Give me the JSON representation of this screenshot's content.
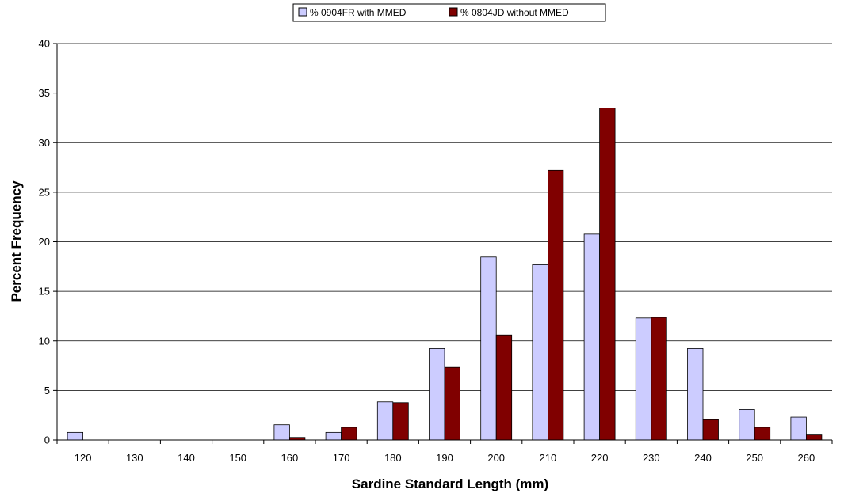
{
  "chart_data": {
    "type": "bar",
    "xlabel": "Sardine Standard Length (mm)",
    "ylabel": "Percent Frequency",
    "ylim": [
      0,
      40
    ],
    "yticks": [
      0,
      5,
      10,
      15,
      20,
      25,
      30,
      35,
      40
    ],
    "grid": true,
    "legend_position": "top-center",
    "categories": [
      "120",
      "130",
      "140",
      "150",
      "160",
      "170",
      "180",
      "190",
      "200",
      "210",
      "220",
      "230",
      "240",
      "250",
      "260"
    ],
    "series": [
      {
        "name": "% 0904FR with MMED",
        "color": "#ccccff",
        "values": [
          0.77,
          0,
          0,
          0,
          1.54,
          0.77,
          3.85,
          9.23,
          18.46,
          17.69,
          20.77,
          12.31,
          9.23,
          3.08,
          2.31
        ]
      },
      {
        "name": "% 0804JD without MMED",
        "color": "#800000",
        "values": [
          0,
          0,
          0,
          0,
          0.26,
          1.28,
          3.77,
          7.33,
          10.6,
          27.2,
          33.5,
          12.37,
          2.05,
          1.28,
          0.51
        ]
      }
    ]
  }
}
